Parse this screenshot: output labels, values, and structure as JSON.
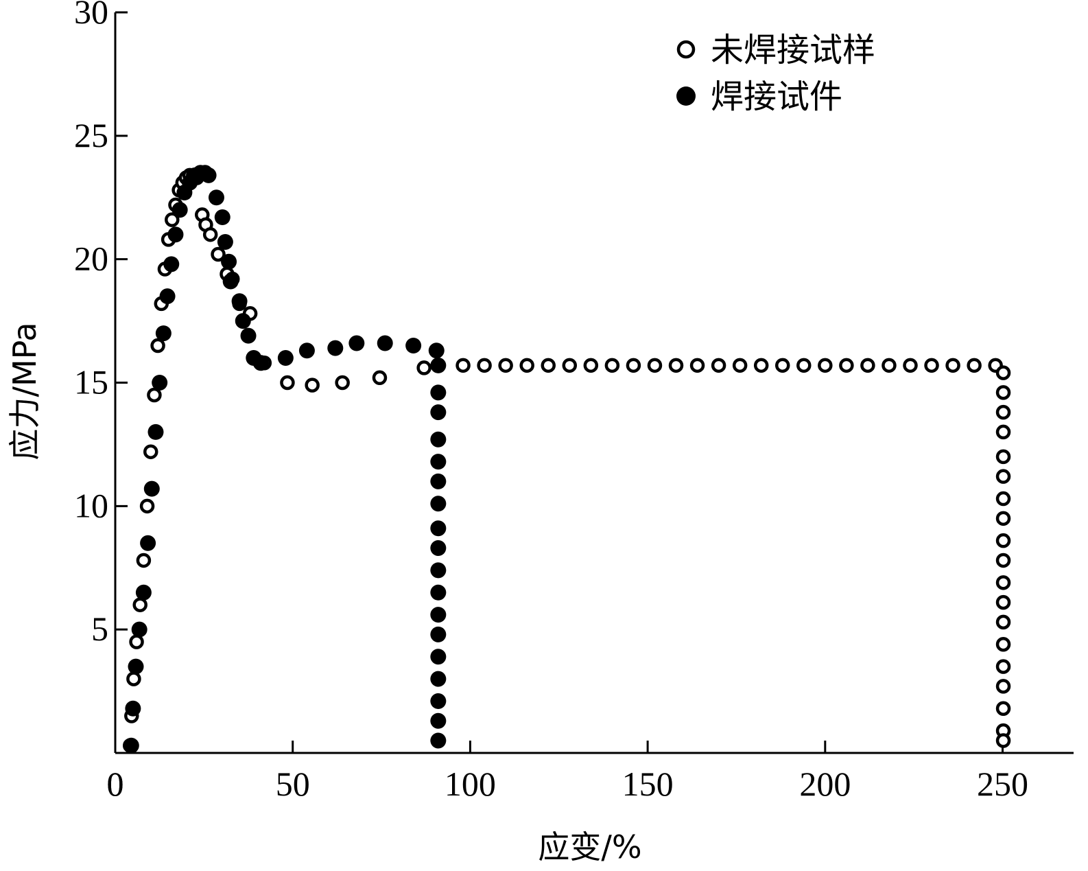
{
  "chart_data": {
    "type": "scatter",
    "xlabel": "应变/%",
    "ylabel": "应力/MPa",
    "xlim": [
      0,
      270
    ],
    "ylim": [
      0,
      30
    ],
    "xticks": [
      0,
      50,
      100,
      150,
      200,
      250
    ],
    "yticks": [
      5,
      10,
      15,
      20,
      25,
      30
    ],
    "legend_position": "top-right",
    "grid": false,
    "series": [
      {
        "name": "未焊接试样",
        "marker": "open-circle",
        "x": [
          4.2,
          4.6,
          5.2,
          6,
          7,
          8,
          9,
          10,
          11,
          12,
          13,
          14,
          15,
          16,
          17,
          18,
          19,
          20,
          21,
          22,
          23,
          24.5,
          25.5,
          26.8,
          29,
          31.5,
          33,
          35,
          38,
          42,
          48.5,
          55.5,
          64,
          74.5,
          87,
          98,
          104,
          110,
          116,
          122,
          128,
          134,
          140,
          146,
          152,
          158,
          164,
          170,
          176,
          182,
          188,
          194,
          200,
          206,
          212,
          218,
          224,
          230,
          236,
          242,
          248,
          250.2,
          250.2,
          250.2,
          250.2,
          250.2,
          250.2,
          250.2,
          250.2,
          250.2,
          250.2,
          250.2,
          250.2,
          250.2,
          250.2,
          250.2,
          250.2,
          250.2,
          250.2,
          250.2
        ],
        "y": [
          0.3,
          1.5,
          3,
          4.5,
          6,
          7.8,
          10,
          12.2,
          14.5,
          16.5,
          18.2,
          19.6,
          20.8,
          21.6,
          22.2,
          22.8,
          23.1,
          23.3,
          23.4,
          23.4,
          23.3,
          21.8,
          21.4,
          21,
          20.2,
          19.4,
          19.2,
          18.2,
          17.8,
          15.8,
          15,
          14.9,
          15,
          15.2,
          15.6,
          15.7,
          15.7,
          15.7,
          15.7,
          15.7,
          15.7,
          15.7,
          15.7,
          15.7,
          15.7,
          15.7,
          15.7,
          15.7,
          15.7,
          15.7,
          15.7,
          15.7,
          15.7,
          15.7,
          15.7,
          15.7,
          15.7,
          15.7,
          15.7,
          15.7,
          15.7,
          15.4,
          14.6,
          13.8,
          13,
          12,
          11.2,
          10.3,
          9.5,
          8.6,
          7.8,
          6.9,
          6.1,
          5.3,
          4.4,
          3.5,
          2.7,
          1.8,
          0.9,
          0.5
        ]
      },
      {
        "name": "焊接试件",
        "marker": "filled-circle",
        "x": [
          4.5,
          5,
          5.8,
          6.8,
          8,
          9.2,
          10.3,
          11.4,
          12.5,
          13.6,
          14.7,
          15.8,
          17,
          18.2,
          19.5,
          21,
          22.5,
          24,
          25.3,
          26.3,
          28.5,
          30.2,
          31,
          32,
          32.5,
          35,
          36,
          37.5,
          39,
          41,
          48,
          54,
          62,
          68,
          76,
          84,
          90.5,
          91,
          91,
          91,
          91,
          91,
          91,
          91,
          91,
          91,
          91,
          91,
          91,
          91,
          91,
          91,
          91,
          91,
          91
        ],
        "y": [
          0.3,
          1.8,
          3.5,
          5,
          6.5,
          8.5,
          10.7,
          13,
          15,
          17,
          18.5,
          19.8,
          21,
          22,
          22.7,
          23.1,
          23.4,
          23.5,
          23.5,
          23.4,
          22.5,
          21.7,
          20.7,
          19.9,
          19.1,
          18.3,
          17.5,
          16.9,
          16,
          15.8,
          16,
          16.3,
          16.4,
          16.6,
          16.6,
          16.5,
          16.3,
          15.7,
          14.6,
          13.8,
          12.7,
          11.8,
          11,
          10.1,
          9.1,
          8.3,
          7.4,
          6.5,
          5.6,
          4.8,
          3.9,
          3,
          2.1,
          1.3,
          0.5
        ]
      }
    ]
  }
}
